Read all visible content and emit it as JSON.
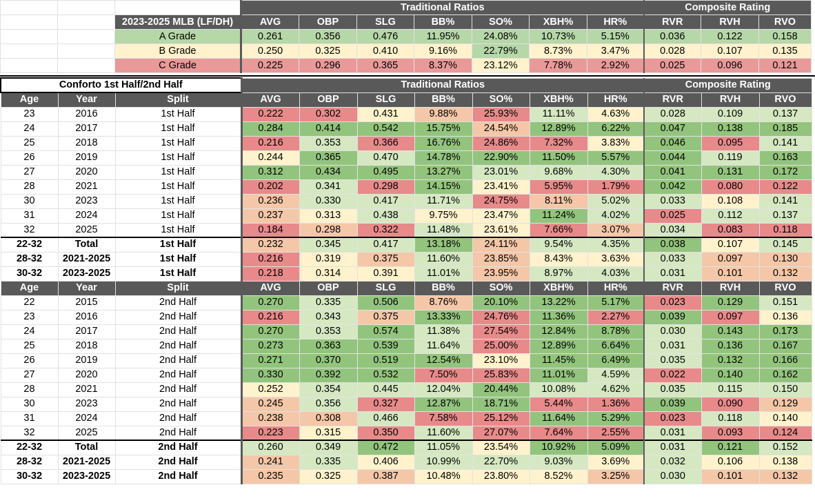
{
  "colors": {
    "good": "#93c47d",
    "mid_good": "#d5e8c2",
    "mid": "#fff2cc",
    "mid_bad": "#f4c7a8",
    "bad": "#e88a8a",
    "header_bg": "#595959"
  },
  "grades": {
    "tag": "2023-2025 MLB (LF/DH)",
    "traditional_label": "Traditional Ratios",
    "composite_label": "Composite Rating",
    "columns": [
      "AVG",
      "OBP",
      "SLG",
      "BB%",
      "SO%",
      "XBH%",
      "HR%",
      "RVR",
      "RVH",
      "RVO"
    ],
    "rows": [
      {
        "label": "A Grade",
        "cls": "g-a",
        "values": [
          "0.261",
          "0.356",
          "0.476",
          "11.95%",
          "24.08%",
          "10.73%",
          "5.15%",
          "0.036",
          "0.122",
          "0.158"
        ],
        "colors": [
          "a",
          "a",
          "a",
          "a",
          "a",
          "a",
          "a",
          "a",
          "a",
          "a"
        ]
      },
      {
        "label": "B Grade",
        "cls": "g-b",
        "values": [
          "0.250",
          "0.325",
          "0.410",
          "9.16%",
          "22.79%",
          "8.73%",
          "3.47%",
          "0.028",
          "0.107",
          "0.135"
        ],
        "colors": [
          "b",
          "b",
          "b",
          "b",
          "a",
          "b",
          "b",
          "b",
          "b",
          "b"
        ]
      },
      {
        "label": "C Grade",
        "cls": "g-c",
        "values": [
          "0.225",
          "0.296",
          "0.365",
          "8.37%",
          "23.12%",
          "7.78%",
          "2.92%",
          "0.025",
          "0.096",
          "0.121"
        ],
        "colors": [
          "c",
          "c",
          "c",
          "c",
          "b",
          "c",
          "c",
          "c",
          "c",
          "c"
        ]
      }
    ]
  },
  "table": {
    "title": "Conforto 1st Half/2nd Half",
    "traditional_label": "Traditional Ratios",
    "composite_label": "Composite Rating",
    "headers": [
      "Age",
      "Year",
      "Split",
      "AVG",
      "OBP",
      "SLG",
      "BB%",
      "SO%",
      "XBH%",
      "HR%",
      "RVR",
      "RVH",
      "RVO"
    ],
    "first_half": [
      {
        "age": "23",
        "year": "2016",
        "split": "1st Half",
        "values": [
          "0.222",
          "0.302",
          "0.431",
          "9.88%",
          "25.93%",
          "11.11%",
          "4.63%",
          "0.028",
          "0.109",
          "0.137"
        ],
        "c": [
          5,
          5,
          3,
          4,
          5,
          2,
          3,
          2,
          2,
          2
        ]
      },
      {
        "age": "24",
        "year": "2017",
        "split": "1st Half",
        "values": [
          "0.284",
          "0.414",
          "0.542",
          "15.75%",
          "24.54%",
          "12.89%",
          "6.22%",
          "0.047",
          "0.138",
          "0.185"
        ],
        "c": [
          1,
          1,
          1,
          1,
          4,
          1,
          1,
          1,
          1,
          1
        ]
      },
      {
        "age": "25",
        "year": "2018",
        "split": "1st Half",
        "values": [
          "0.216",
          "0.353",
          "0.366",
          "16.76%",
          "24.86%",
          "7.32%",
          "3.83%",
          "0.046",
          "0.095",
          "0.141"
        ],
        "c": [
          5,
          2,
          5,
          1,
          5,
          5,
          3,
          1,
          5,
          2
        ]
      },
      {
        "age": "26",
        "year": "2019",
        "split": "1st Half",
        "values": [
          "0.244",
          "0.365",
          "0.470",
          "14.78%",
          "22.90%",
          "11.50%",
          "5.57%",
          "0.044",
          "0.119",
          "0.163"
        ],
        "c": [
          3,
          1,
          2,
          1,
          1,
          1,
          1,
          1,
          2,
          1
        ]
      },
      {
        "age": "27",
        "year": "2020",
        "split": "1st Half",
        "values": [
          "0.312",
          "0.434",
          "0.495",
          "13.27%",
          "23.01%",
          "9.68%",
          "4.30%",
          "0.041",
          "0.131",
          "0.172"
        ],
        "c": [
          1,
          1,
          1,
          1,
          2,
          2,
          2,
          1,
          1,
          1
        ]
      },
      {
        "age": "28",
        "year": "2021",
        "split": "1st Half",
        "values": [
          "0.202",
          "0.341",
          "0.298",
          "14.15%",
          "23.41%",
          "5.95%",
          "1.79%",
          "0.042",
          "0.080",
          "0.122"
        ],
        "c": [
          5,
          2,
          5,
          1,
          3,
          5,
          5,
          1,
          5,
          5
        ]
      },
      {
        "age": "30",
        "year": "2023",
        "split": "1st Half",
        "values": [
          "0.236",
          "0.330",
          "0.417",
          "11.71%",
          "24.75%",
          "8.11%",
          "5.02%",
          "0.033",
          "0.108",
          "0.141"
        ],
        "c": [
          4,
          2,
          2,
          2,
          5,
          4,
          2,
          2,
          3,
          2
        ]
      },
      {
        "age": "31",
        "year": "2024",
        "split": "1st Half",
        "values": [
          "0.237",
          "0.313",
          "0.438",
          "9.75%",
          "23.47%",
          "11.24%",
          "4.02%",
          "0.025",
          "0.112",
          "0.137"
        ],
        "c": [
          4,
          3,
          2,
          3,
          3,
          1,
          2,
          5,
          2,
          2
        ]
      },
      {
        "age": "32",
        "year": "2025",
        "split": "1st Half",
        "values": [
          "0.184",
          "0.298",
          "0.322",
          "11.48%",
          "23.61%",
          "7.66%",
          "3.07%",
          "0.034",
          "0.083",
          "0.118"
        ],
        "c": [
          5,
          4,
          5,
          2,
          3,
          5,
          4,
          2,
          5,
          5
        ]
      }
    ],
    "first_half_totals": [
      {
        "age": "22-32",
        "year": "Total",
        "split": "1st Half",
        "values": [
          "0.232",
          "0.345",
          "0.417",
          "13.18%",
          "24.11%",
          "9.54%",
          "4.35%",
          "0.038",
          "0.107",
          "0.145"
        ],
        "c": [
          4,
          2,
          2,
          1,
          4,
          2,
          2,
          1,
          3,
          2
        ]
      },
      {
        "age": "28-32",
        "year": "2021-2025",
        "split": "1st Half",
        "values": [
          "0.216",
          "0.319",
          "0.375",
          "11.60%",
          "23.85%",
          "8.43%",
          "3.63%",
          "0.033",
          "0.097",
          "0.130"
        ],
        "c": [
          5,
          3,
          4,
          2,
          4,
          3,
          3,
          2,
          4,
          4
        ]
      },
      {
        "age": "30-32",
        "year": "2023-2025",
        "split": "1st Half",
        "values": [
          "0.218",
          "0.314",
          "0.391",
          "11.01%",
          "23.95%",
          "8.97%",
          "4.03%",
          "0.031",
          "0.101",
          "0.132"
        ],
        "c": [
          5,
          3,
          3,
          2,
          4,
          2,
          2,
          2,
          4,
          4
        ]
      }
    ],
    "second_half": [
      {
        "age": "22",
        "year": "2015",
        "split": "2nd Half",
        "values": [
          "0.270",
          "0.335",
          "0.506",
          "8.76%",
          "20.10%",
          "13.22%",
          "5.17%",
          "0.023",
          "0.129",
          "0.151"
        ],
        "c": [
          1,
          2,
          1,
          4,
          1,
          1,
          1,
          5,
          1,
          2
        ]
      },
      {
        "age": "23",
        "year": "2016",
        "split": "2nd Half",
        "values": [
          "0.216",
          "0.343",
          "0.375",
          "13.33%",
          "24.76%",
          "11.36%",
          "2.27%",
          "0.039",
          "0.097",
          "0.136"
        ],
        "c": [
          5,
          2,
          4,
          1,
          5,
          1,
          5,
          1,
          5,
          3
        ]
      },
      {
        "age": "24",
        "year": "2017",
        "split": "2nd Half",
        "values": [
          "0.270",
          "0.353",
          "0.574",
          "11.38%",
          "27.54%",
          "12.84%",
          "8.78%",
          "0.030",
          "0.143",
          "0.173"
        ],
        "c": [
          1,
          2,
          1,
          2,
          5,
          1,
          1,
          2,
          1,
          1
        ]
      },
      {
        "age": "25",
        "year": "2018",
        "split": "2nd Half",
        "values": [
          "0.273",
          "0.363",
          "0.539",
          "11.64%",
          "25.00%",
          "12.89%",
          "6.64%",
          "0.031",
          "0.136",
          "0.167"
        ],
        "c": [
          1,
          1,
          1,
          2,
          5,
          1,
          1,
          2,
          1,
          1
        ]
      },
      {
        "age": "26",
        "year": "2019",
        "split": "2nd Half",
        "values": [
          "0.271",
          "0.370",
          "0.519",
          "12.54%",
          "23.10%",
          "11.45%",
          "6.49%",
          "0.035",
          "0.132",
          "0.166"
        ],
        "c": [
          1,
          1,
          1,
          1,
          3,
          1,
          1,
          2,
          1,
          1
        ]
      },
      {
        "age": "27",
        "year": "2020",
        "split": "2nd Half",
        "values": [
          "0.330",
          "0.392",
          "0.532",
          "7.50%",
          "25.83%",
          "11.01%",
          "4.59%",
          "0.022",
          "0.140",
          "0.162"
        ],
        "c": [
          1,
          1,
          1,
          5,
          5,
          1,
          2,
          5,
          1,
          1
        ]
      },
      {
        "age": "28",
        "year": "2021",
        "split": "2nd Half",
        "values": [
          "0.252",
          "0.354",
          "0.445",
          "12.04%",
          "20.44%",
          "10.08%",
          "4.62%",
          "0.035",
          "0.115",
          "0.150"
        ],
        "c": [
          3,
          2,
          2,
          2,
          1,
          2,
          2,
          2,
          2,
          2
        ]
      },
      {
        "age": "30",
        "year": "2023",
        "split": "2nd Half",
        "values": [
          "0.245",
          "0.356",
          "0.327",
          "12.87%",
          "18.71%",
          "5.44%",
          "1.36%",
          "0.039",
          "0.090",
          "0.129"
        ],
        "c": [
          4,
          2,
          5,
          1,
          1,
          5,
          5,
          1,
          5,
          4
        ]
      },
      {
        "age": "31",
        "year": "2024",
        "split": "2nd Half",
        "values": [
          "0.238",
          "0.308",
          "0.466",
          "7.58%",
          "25.12%",
          "11.64%",
          "5.29%",
          "0.023",
          "0.118",
          "0.140"
        ],
        "c": [
          4,
          4,
          2,
          5,
          5,
          1,
          1,
          5,
          2,
          3
        ]
      },
      {
        "age": "32",
        "year": "2025",
        "split": "2nd Half",
        "values": [
          "0.223",
          "0.315",
          "0.350",
          "11.60%",
          "27.07%",
          "7.64%",
          "2.55%",
          "0.031",
          "0.093",
          "0.124"
        ],
        "c": [
          5,
          3,
          5,
          2,
          5,
          5,
          5,
          2,
          5,
          5
        ]
      }
    ],
    "second_half_totals": [
      {
        "age": "22-32",
        "year": "Total",
        "split": "2nd Half",
        "values": [
          "0.260",
          "0.349",
          "0.472",
          "11.05%",
          "23.54%",
          "10.92%",
          "5.09%",
          "0.031",
          "0.121",
          "0.152"
        ],
        "c": [
          2,
          2,
          1,
          2,
          3,
          1,
          1,
          2,
          1,
          2
        ]
      },
      {
        "age": "28-32",
        "year": "2021-2025",
        "split": "2nd Half",
        "values": [
          "0.241",
          "0.335",
          "0.406",
          "10.99%",
          "22.70%",
          "9.03%",
          "3.69%",
          "0.032",
          "0.106",
          "0.138"
        ],
        "c": [
          4,
          2,
          3,
          2,
          2,
          2,
          3,
          2,
          3,
          3
        ]
      },
      {
        "age": "30-32",
        "year": "2023-2025",
        "split": "2nd Half",
        "values": [
          "0.235",
          "0.325",
          "0.387",
          "10.48%",
          "23.80%",
          "8.52%",
          "3.25%",
          "0.030",
          "0.101",
          "0.132"
        ],
        "c": [
          4,
          3,
          4,
          3,
          3,
          3,
          4,
          2,
          4,
          4
        ]
      }
    ]
  }
}
